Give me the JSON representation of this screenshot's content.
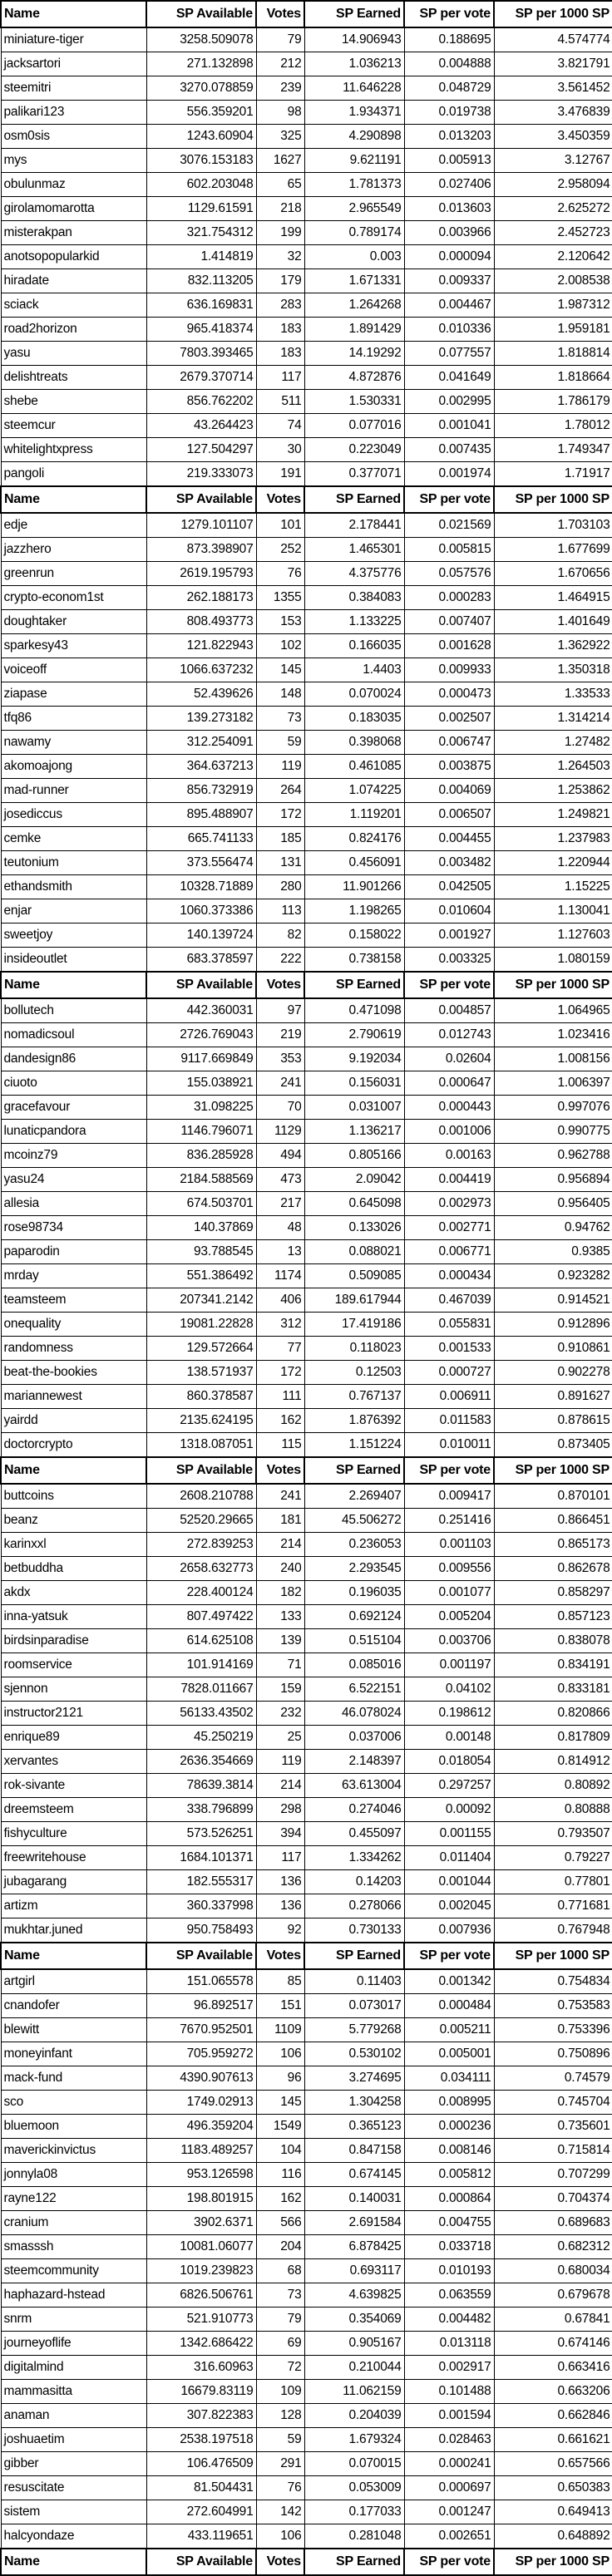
{
  "table": {
    "header": {
      "name": "Name",
      "sp_available": "SP Available",
      "votes": "Votes",
      "sp_earned": "SP Earned",
      "sp_per_vote": "SP per vote",
      "sp_per_1000": "SP per 1000 SP"
    },
    "sections": [
      {
        "rows": [
          [
            "miniature-tiger",
            "3258.509078",
            "79",
            "14.906943",
            "0.188695",
            "4.574774"
          ],
          [
            "jacksartori",
            "271.132898",
            "212",
            "1.036213",
            "0.004888",
            "3.821791"
          ],
          [
            "steemitri",
            "3270.078859",
            "239",
            "11.646228",
            "0.048729",
            "3.561452"
          ],
          [
            "palikari123",
            "556.359201",
            "98",
            "1.934371",
            "0.019738",
            "3.476839"
          ],
          [
            "osm0sis",
            "1243.60904",
            "325",
            "4.290898",
            "0.013203",
            "3.450359"
          ],
          [
            "mys",
            "3076.153183",
            "1627",
            "9.621191",
            "0.005913",
            "3.12767"
          ],
          [
            "obulunmaz",
            "602.203048",
            "65",
            "1.781373",
            "0.027406",
            "2.958094"
          ],
          [
            "girolamomarotta",
            "1129.61591",
            "218",
            "2.965549",
            "0.013603",
            "2.625272"
          ],
          [
            "misterakpan",
            "321.754312",
            "199",
            "0.789174",
            "0.003966",
            "2.452723"
          ],
          [
            "anotsopopularkid",
            "1.414819",
            "32",
            "0.003",
            "0.000094",
            "2.120642"
          ],
          [
            "hiradate",
            "832.113205",
            "179",
            "1.671331",
            "0.009337",
            "2.008538"
          ],
          [
            "sciack",
            "636.169831",
            "283",
            "1.264268",
            "0.004467",
            "1.987312"
          ],
          [
            "road2horizon",
            "965.418374",
            "183",
            "1.891429",
            "0.010336",
            "1.959181"
          ],
          [
            "yasu",
            "7803.393465",
            "183",
            "14.19292",
            "0.077557",
            "1.818814"
          ],
          [
            "delishtreats",
            "2679.370714",
            "117",
            "4.872876",
            "0.041649",
            "1.818664"
          ],
          [
            "shebe",
            "856.762202",
            "511",
            "1.530331",
            "0.002995",
            "1.786179"
          ],
          [
            "steemcur",
            "43.264423",
            "74",
            "0.077016",
            "0.001041",
            "1.78012"
          ],
          [
            "whitelightxpress",
            "127.504297",
            "30",
            "0.223049",
            "0.007435",
            "1.749347"
          ],
          [
            "pangoli",
            "219.333073",
            "191",
            "0.377071",
            "0.001974",
            "1.71917"
          ]
        ]
      },
      {
        "rows": [
          [
            "edje",
            "1279.101107",
            "101",
            "2.178441",
            "0.021569",
            "1.703103"
          ],
          [
            "jazzhero",
            "873.398907",
            "252",
            "1.465301",
            "0.005815",
            "1.677699"
          ],
          [
            "greenrun",
            "2619.195793",
            "76",
            "4.375776",
            "0.057576",
            "1.670656"
          ],
          [
            "crypto-econom1st",
            "262.188173",
            "1355",
            "0.384083",
            "0.000283",
            "1.464915"
          ],
          [
            "doughtaker",
            "808.493773",
            "153",
            "1.133225",
            "0.007407",
            "1.401649"
          ],
          [
            "sparkesy43",
            "121.822943",
            "102",
            "0.166035",
            "0.001628",
            "1.362922"
          ],
          [
            "voiceoff",
            "1066.637232",
            "145",
            "1.4403",
            "0.009933",
            "1.350318"
          ],
          [
            "ziapase",
            "52.439626",
            "148",
            "0.070024",
            "0.000473",
            "1.33533"
          ],
          [
            "tfq86",
            "139.273182",
            "73",
            "0.183035",
            "0.002507",
            "1.314214"
          ],
          [
            "nawamy",
            "312.254091",
            "59",
            "0.398068",
            "0.006747",
            "1.27482"
          ],
          [
            "akomoajong",
            "364.637213",
            "119",
            "0.461085",
            "0.003875",
            "1.264503"
          ],
          [
            "mad-runner",
            "856.732919",
            "264",
            "1.074225",
            "0.004069",
            "1.253862"
          ],
          [
            "josediccus",
            "895.488907",
            "172",
            "1.119201",
            "0.006507",
            "1.249821"
          ],
          [
            "cemke",
            "665.741133",
            "185",
            "0.824176",
            "0.004455",
            "1.237983"
          ],
          [
            "teutonium",
            "373.556474",
            "131",
            "0.456091",
            "0.003482",
            "1.220944"
          ],
          [
            "ethandsmith",
            "10328.71889",
            "280",
            "11.901266",
            "0.042505",
            "1.15225"
          ],
          [
            "enjar",
            "1060.373386",
            "113",
            "1.198265",
            "0.010604",
            "1.130041"
          ],
          [
            "sweetjoy",
            "140.139724",
            "82",
            "0.158022",
            "0.001927",
            "1.127603"
          ],
          [
            "insideoutlet",
            "683.378597",
            "222",
            "0.738158",
            "0.003325",
            "1.080159"
          ]
        ]
      },
      {
        "rows": [
          [
            "bollutech",
            "442.360031",
            "97",
            "0.471098",
            "0.004857",
            "1.064965"
          ],
          [
            "nomadicsoul",
            "2726.769043",
            "219",
            "2.790619",
            "0.012743",
            "1.023416"
          ],
          [
            "dandesign86",
            "9117.669849",
            "353",
            "9.192034",
            "0.02604",
            "1.008156"
          ],
          [
            "ciuoto",
            "155.038921",
            "241",
            "0.156031",
            "0.000647",
            "1.006397"
          ],
          [
            "gracefavour",
            "31.098225",
            "70",
            "0.031007",
            "0.000443",
            "0.997076"
          ],
          [
            "lunaticpandora",
            "1146.796071",
            "1129",
            "1.136217",
            "0.001006",
            "0.990775"
          ],
          [
            "mcoinz79",
            "836.285928",
            "494",
            "0.805166",
            "0.00163",
            "0.962788"
          ],
          [
            "yasu24",
            "2184.588569",
            "473",
            "2.09042",
            "0.004419",
            "0.956894"
          ],
          [
            "allesia",
            "674.503701",
            "217",
            "0.645098",
            "0.002973",
            "0.956405"
          ],
          [
            "rose98734",
            "140.37869",
            "48",
            "0.133026",
            "0.002771",
            "0.94762"
          ],
          [
            "paparodin",
            "93.788545",
            "13",
            "0.088021",
            "0.006771",
            "0.9385"
          ],
          [
            "mrday",
            "551.386492",
            "1174",
            "0.509085",
            "0.000434",
            "0.923282"
          ],
          [
            "teamsteem",
            "207341.2142",
            "406",
            "189.617944",
            "0.467039",
            "0.914521"
          ],
          [
            "onequality",
            "19081.22828",
            "312",
            "17.419186",
            "0.055831",
            "0.912896"
          ],
          [
            "randomness",
            "129.572664",
            "77",
            "0.118023",
            "0.001533",
            "0.910861"
          ],
          [
            "beat-the-bookies",
            "138.571937",
            "172",
            "0.12503",
            "0.000727",
            "0.902278"
          ],
          [
            "mariannewest",
            "860.378587",
            "111",
            "0.767137",
            "0.006911",
            "0.891627"
          ],
          [
            "yairdd",
            "2135.624195",
            "162",
            "1.876392",
            "0.011583",
            "0.878615"
          ],
          [
            "doctorcrypto",
            "1318.087051",
            "115",
            "1.151224",
            "0.010011",
            "0.873405"
          ]
        ]
      },
      {
        "rows": [
          [
            "buttcoins",
            "2608.210788",
            "241",
            "2.269407",
            "0.009417",
            "0.870101"
          ],
          [
            "beanz",
            "52520.29665",
            "181",
            "45.506272",
            "0.251416",
            "0.866451"
          ],
          [
            "karinxxl",
            "272.839253",
            "214",
            "0.236053",
            "0.001103",
            "0.865173"
          ],
          [
            "betbuddha",
            "2658.632773",
            "240",
            "2.293545",
            "0.009556",
            "0.862678"
          ],
          [
            "akdx",
            "228.400124",
            "182",
            "0.196035",
            "0.001077",
            "0.858297"
          ],
          [
            "inna-yatsuk",
            "807.497422",
            "133",
            "0.692124",
            "0.005204",
            "0.857123"
          ],
          [
            "birdsinparadise",
            "614.625108",
            "139",
            "0.515104",
            "0.003706",
            "0.838078"
          ],
          [
            "roomservice",
            "101.914169",
            "71",
            "0.085016",
            "0.001197",
            "0.834191"
          ],
          [
            "sjennon",
            "7828.011667",
            "159",
            "6.522151",
            "0.04102",
            "0.833181"
          ],
          [
            "instructor2121",
            "56133.43502",
            "232",
            "46.078024",
            "0.198612",
            "0.820866"
          ],
          [
            "enrique89",
            "45.250219",
            "25",
            "0.037006",
            "0.00148",
            "0.817809"
          ],
          [
            "xervantes",
            "2636.354669",
            "119",
            "2.148397",
            "0.018054",
            "0.814912"
          ],
          [
            "rok-sivante",
            "78639.3814",
            "214",
            "63.613004",
            "0.297257",
            "0.80892"
          ],
          [
            "dreemsteem",
            "338.796899",
            "298",
            "0.274046",
            "0.00092",
            "0.80888"
          ],
          [
            "fishyculture",
            "573.526251",
            "394",
            "0.455097",
            "0.001155",
            "0.793507"
          ],
          [
            "freewritehouse",
            "1684.101371",
            "117",
            "1.334262",
            "0.011404",
            "0.79227"
          ],
          [
            "jubagarang",
            "182.555317",
            "136",
            "0.14203",
            "0.001044",
            "0.77801"
          ],
          [
            "artizm",
            "360.337998",
            "136",
            "0.278066",
            "0.002045",
            "0.771681"
          ],
          [
            "mukhtar.juned",
            "950.758493",
            "92",
            "0.730133",
            "0.007936",
            "0.767948"
          ]
        ]
      },
      {
        "rows": [
          [
            "artgirl",
            "151.065578",
            "85",
            "0.11403",
            "0.001342",
            "0.754834"
          ],
          [
            "cnandofer",
            "96.892517",
            "151",
            "0.073017",
            "0.000484",
            "0.753583"
          ],
          [
            "blewitt",
            "7670.952501",
            "1109",
            "5.779268",
            "0.005211",
            "0.753396"
          ],
          [
            "moneyinfant",
            "705.959272",
            "106",
            "0.530102",
            "0.005001",
            "0.750896"
          ],
          [
            "mack-fund",
            "4390.907613",
            "96",
            "3.274695",
            "0.034111",
            "0.74579"
          ],
          [
            "sco",
            "1749.02913",
            "145",
            "1.304258",
            "0.008995",
            "0.745704"
          ],
          [
            "bluemoon",
            "496.359204",
            "1549",
            "0.365123",
            "0.000236",
            "0.735601"
          ],
          [
            "maverickinvictus",
            "1183.489257",
            "104",
            "0.847158",
            "0.008146",
            "0.715814"
          ],
          [
            "jonnyla08",
            "953.126598",
            "116",
            "0.674145",
            "0.005812",
            "0.707299"
          ],
          [
            "rayne122",
            "198.801915",
            "162",
            "0.140031",
            "0.000864",
            "0.704374"
          ],
          [
            "cranium",
            "3902.6371",
            "566",
            "2.691584",
            "0.004755",
            "0.689683"
          ],
          [
            "smasssh",
            "10081.06077",
            "204",
            "6.878425",
            "0.033718",
            "0.682312"
          ],
          [
            "steemcommunity",
            "1019.239823",
            "68",
            "0.693117",
            "0.010193",
            "0.680034"
          ],
          [
            "haphazard-hstead",
            "6826.506761",
            "73",
            "4.639825",
            "0.063559",
            "0.679678"
          ],
          [
            "snrm",
            "521.910773",
            "79",
            "0.354069",
            "0.004482",
            "0.67841"
          ],
          [
            "journeyoflife",
            "1342.686422",
            "69",
            "0.905167",
            "0.013118",
            "0.674146"
          ],
          [
            "digitalmind",
            "316.60963",
            "72",
            "0.210044",
            "0.002917",
            "0.663416"
          ],
          [
            "mammasitta",
            "16679.83119",
            "109",
            "11.062159",
            "0.101488",
            "0.663206"
          ],
          [
            "anaman",
            "307.822383",
            "128",
            "0.204039",
            "0.001594",
            "0.662846"
          ],
          [
            "joshuaetim",
            "2538.197518",
            "59",
            "1.679324",
            "0.028463",
            "0.661621"
          ],
          [
            "gibber",
            "106.476509",
            "291",
            "0.070015",
            "0.000241",
            "0.657566"
          ],
          [
            "resuscitate",
            "81.504431",
            "76",
            "0.053009",
            "0.000697",
            "0.650383"
          ],
          [
            "sistem",
            "272.604991",
            "142",
            "0.177033",
            "0.001247",
            "0.649413"
          ],
          [
            "halcyondaze",
            "433.119651",
            "106",
            "0.281048",
            "0.002651",
            "0.648892"
          ]
        ]
      }
    ]
  }
}
